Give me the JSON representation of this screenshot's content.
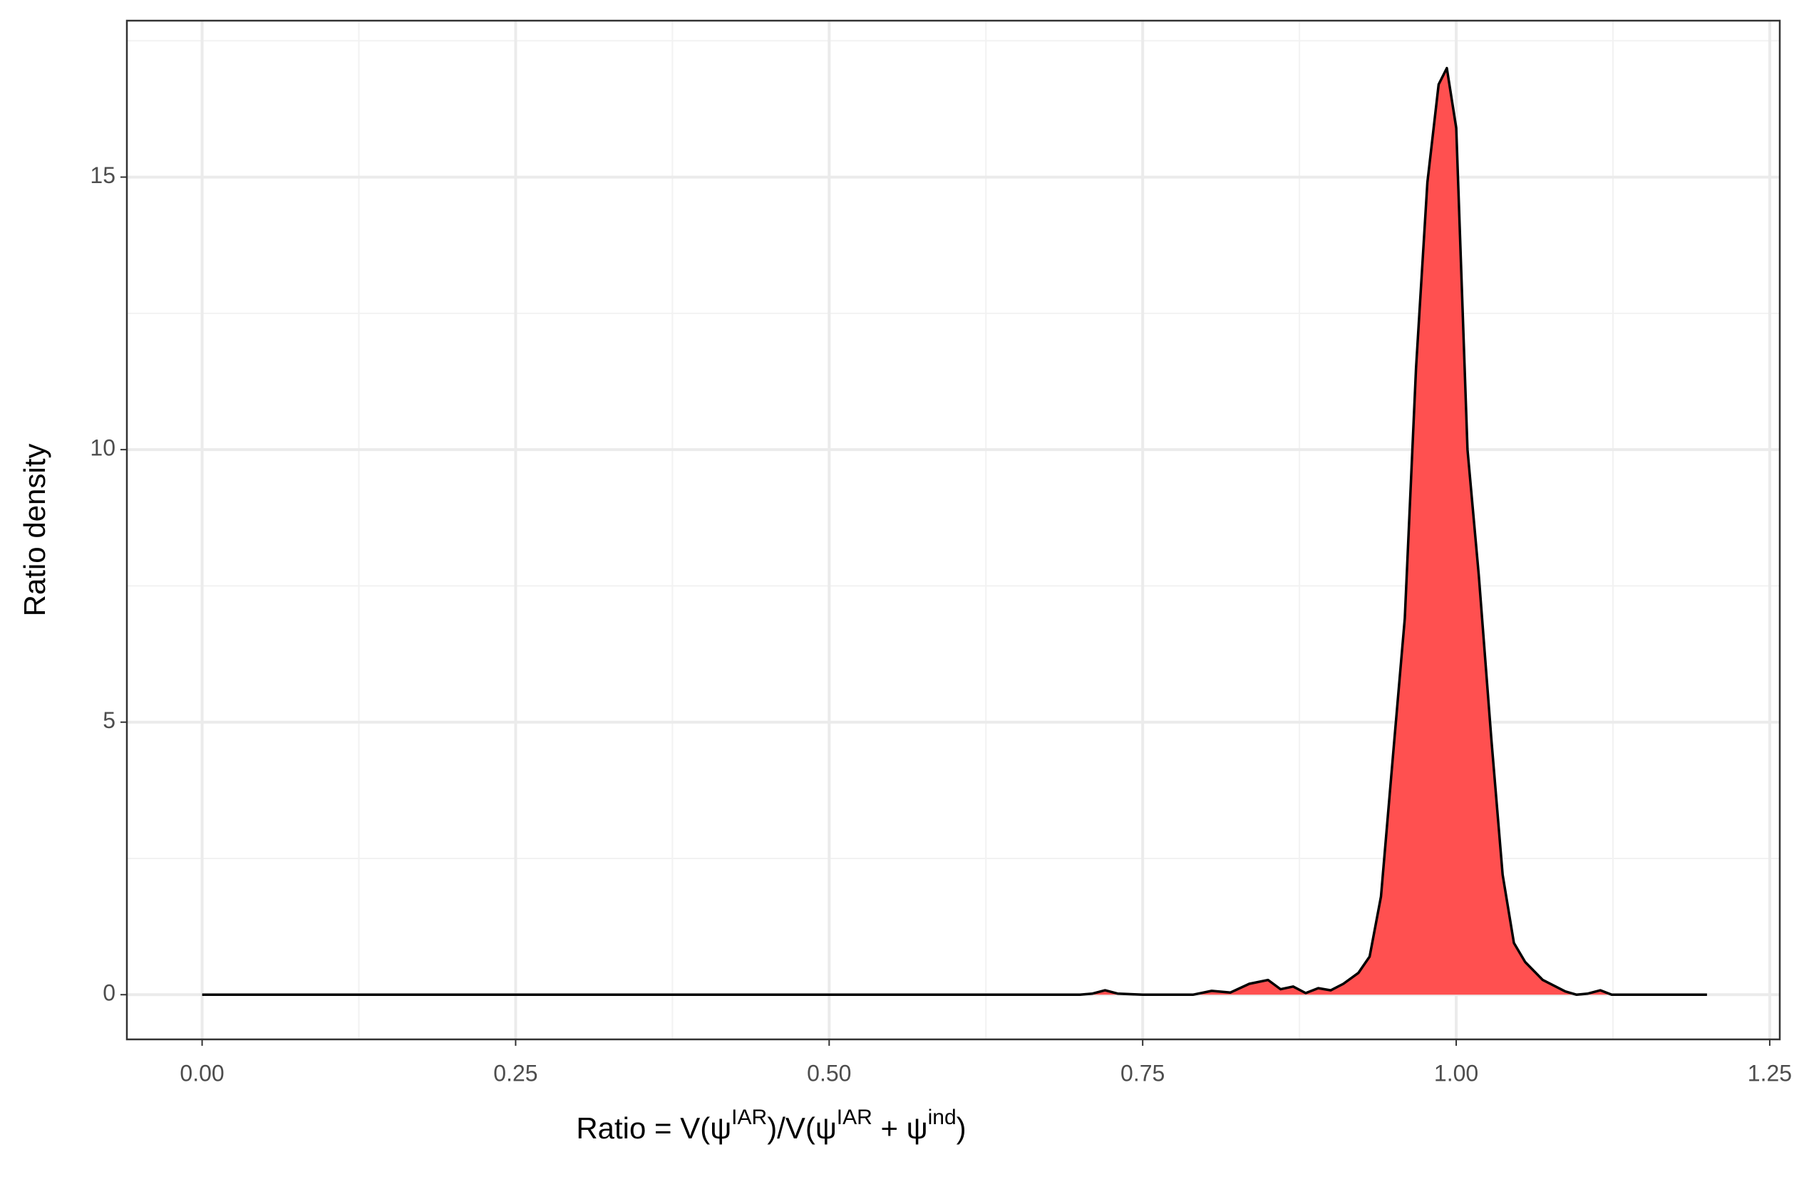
{
  "chart_data": {
    "type": "area",
    "xlabel": [
      "Ratio = V(ψ",
      "IAR",
      ")/V(ψ",
      "IAR",
      " + ψ",
      "ind",
      ")"
    ],
    "ylabel": "Ratio density",
    "x": [
      0,
      0.7,
      0.71,
      0.72,
      0.73,
      0.75,
      0.79,
      0.805,
      0.82,
      0.835,
      0.85,
      0.86,
      0.87,
      0.88,
      0.89,
      0.9,
      0.91,
      0.922,
      0.931,
      0.94,
      0.95,
      0.959,
      0.968,
      0.977,
      0.986,
      0.9925,
      1.0,
      1.009,
      1.018,
      1.028,
      1.037,
      1.046,
      1.055,
      1.069,
      1.087,
      1.096,
      1.105,
      1.115,
      1.124,
      1.2
    ],
    "values": [
      0,
      0,
      0.02,
      0.08,
      0.02,
      0,
      0,
      0.07,
      0.04,
      0.2,
      0.27,
      0.1,
      0.15,
      0.03,
      0.12,
      0.08,
      0.2,
      0.4,
      0.7,
      1.8,
      4.5,
      6.9,
      11.5,
      14.9,
      16.7,
      17.0,
      15.9,
      10.0,
      7.7,
      4.7,
      2.2,
      0.95,
      0.6,
      0.27,
      0.06,
      0,
      0.02,
      0.08,
      0,
      0
    ],
    "color": "#ff4d4d",
    "xlim": [
      -0.06,
      1.258
    ],
    "ylim": [
      -0.82,
      17.87
    ],
    "xticks": [
      {
        "value": 0,
        "label": "0.00"
      },
      {
        "value": 0.25,
        "label": "0.25"
      },
      {
        "value": 0.5,
        "label": "0.50"
      },
      {
        "value": 0.75,
        "label": "0.75"
      },
      {
        "value": 1,
        "label": "1.00"
      },
      {
        "value": 1.25,
        "label": "1.25"
      }
    ],
    "yticks": [
      0,
      5,
      10,
      15
    ],
    "minor_xticks": [
      0.125,
      0.375,
      0.625,
      0.875,
      1.125
    ],
    "minor_yticks": [
      2.5,
      7.5,
      12.5,
      17.5
    ],
    "grid": true
  }
}
